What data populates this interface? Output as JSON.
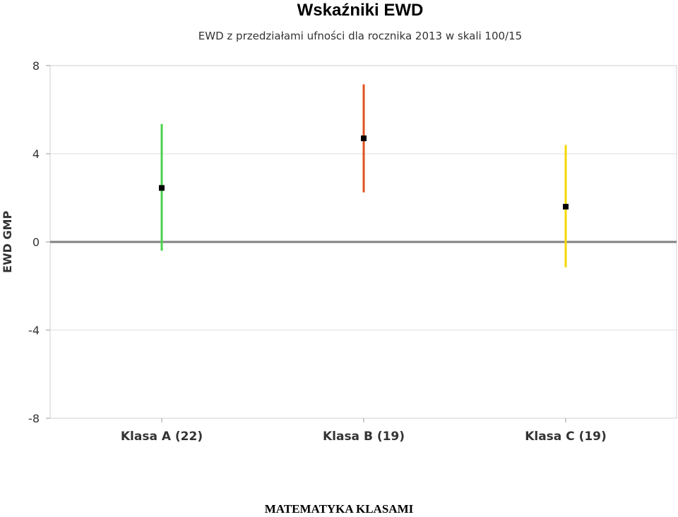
{
  "chart_data": {
    "type": "errorbar",
    "title": "Wskaźniki EWD",
    "subtitle": "EWD z przedziałami ufności dla rocznika 2013 w skali 100/15",
    "ylabel": "EWD GMP",
    "xlabel": "",
    "ylim": [
      -8,
      8
    ],
    "yticks": [
      8,
      4,
      0,
      -4,
      -8
    ],
    "categories": [
      "Klasa A (22)",
      "Klasa B (19)",
      "Klasa C (19)"
    ],
    "points": [
      {
        "category": "Klasa A (22)",
        "value": 2.45,
        "lower": -0.4,
        "upper": 5.35,
        "color": "#4cd04c"
      },
      {
        "category": "Klasa B (19)",
        "value": 4.7,
        "lower": 2.25,
        "upper": 7.15,
        "color": "#e0501e"
      },
      {
        "category": "Klasa C (19)",
        "value": 1.6,
        "lower": -1.15,
        "upper": 4.4,
        "color": "#f5d800"
      }
    ],
    "grid": true,
    "zero_line_color": "#808080"
  },
  "footer": "MATEMATYKA KLASAMI"
}
